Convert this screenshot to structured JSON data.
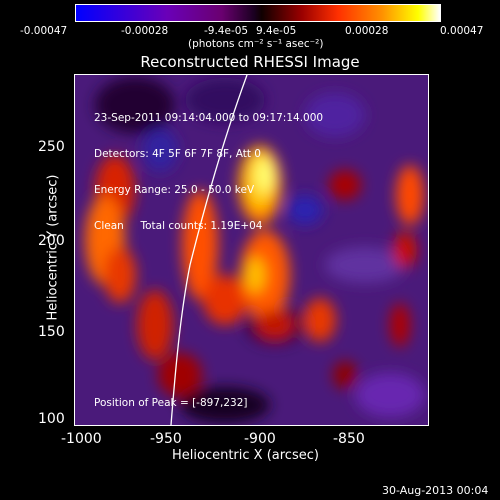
{
  "colorbar": {
    "ticks": [
      "-0.00047",
      "-0.00028",
      "-9.4e-05",
      "9.4e-05",
      "0.00028",
      "0.00047"
    ],
    "units": "(photons cm⁻² s⁻¹ asec⁻²)"
  },
  "title": "Reconstructed RHESSI Image",
  "info": {
    "time": "23-Sep-2011 09:14:04.000 to 09:17:14.000",
    "detectors": "Detectors: 4F 5F 6F 7F 8F, Att 0",
    "energy": "Energy Range: 25.0 - 50.0 keV",
    "clean": "Clean     Total counts: 1.19E+04"
  },
  "peak": "Position of Peak = [-897,232]",
  "axes": {
    "xlabel": "Heliocentric X (arcsec)",
    "ylabel": "Heliocentric Y (arcsec)",
    "xticks": [
      "-1000",
      "-950",
      "-900",
      "-850"
    ],
    "yticks": [
      "250",
      "200",
      "150",
      "100"
    ]
  },
  "date": "30-Aug-2013 00:04"
}
